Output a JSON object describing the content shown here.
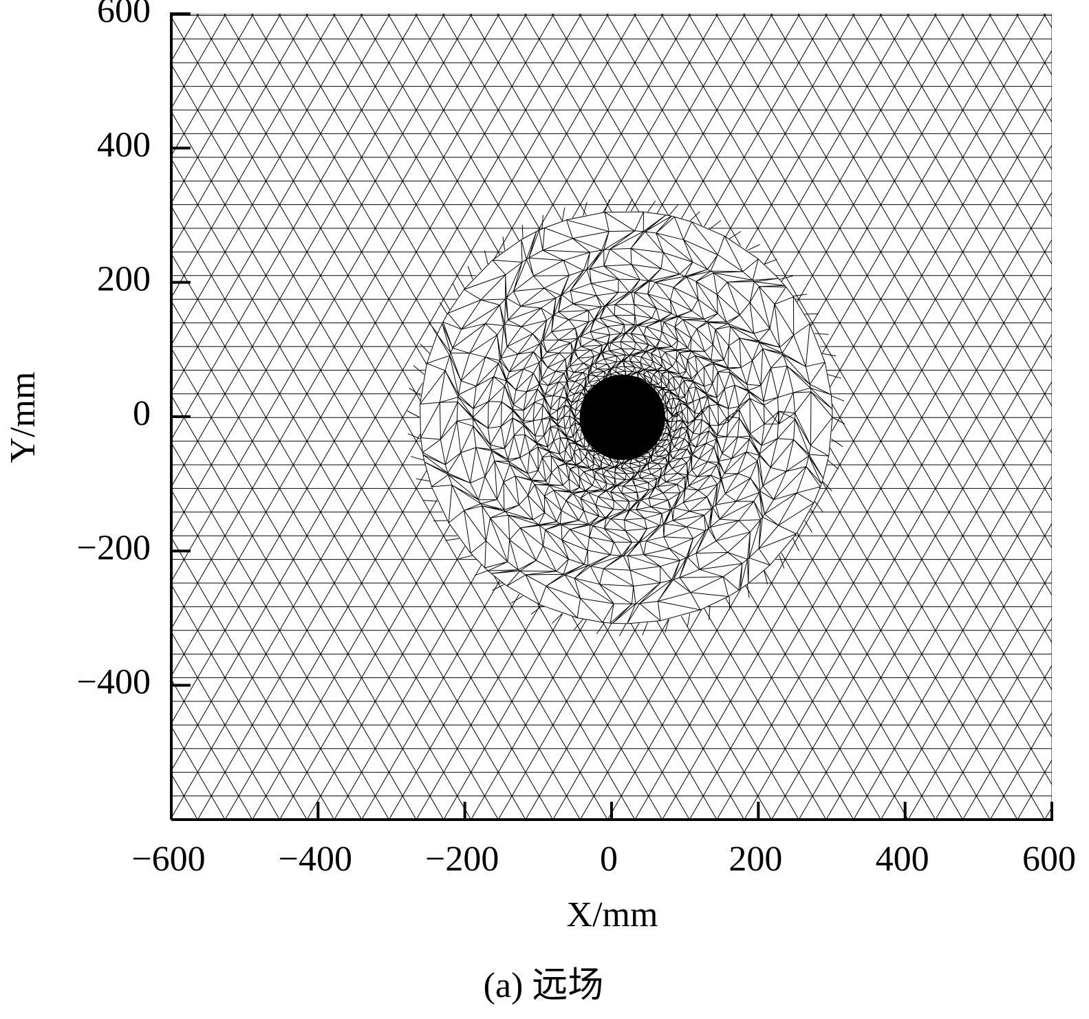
{
  "chart_data": {
    "type": "mesh",
    "xlabel": "X/mm",
    "ylabel": "Y/mm",
    "caption": "(a) 远场",
    "xlim": [
      -600,
      600
    ],
    "ylim": [
      -600,
      600
    ],
    "xticks": [
      {
        "value": -600,
        "label": "−600"
      },
      {
        "value": -400,
        "label": "−400"
      },
      {
        "value": -200,
        "label": "−200"
      },
      0,
      200,
      400,
      600
    ],
    "yticks": [
      {
        "value": -400,
        "label": "−400"
      },
      {
        "value": -200,
        "label": "−200"
      },
      0,
      200,
      400,
      600
    ],
    "color": "#000000"
  }
}
